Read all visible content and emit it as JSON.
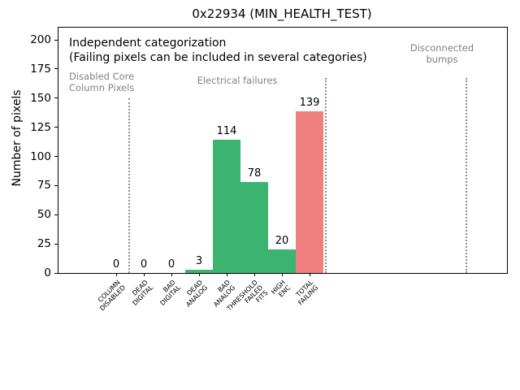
{
  "chart_data": {
    "type": "bar",
    "title": "0x22934 (MIN_HEALTH_TEST)",
    "xlabel": "",
    "ylabel": "Number of pixels",
    "ylim": [
      0,
      210
    ],
    "yticks": [
      0,
      25,
      50,
      75,
      100,
      125,
      150,
      175,
      200
    ],
    "grid": false,
    "legend": false,
    "categories": [
      "COLUMN\nDISABLED",
      "DEAD\nDIGITAL",
      "BAD\nDIGITAL",
      "DEAD\nANALOG",
      "BAD\nANALOG",
      "THRESHOLD\nFAILED\nFITS",
      "HIGH\nENC",
      "TOTAL\nFAILING"
    ],
    "values": [
      0,
      0,
      0,
      3,
      114,
      78,
      20,
      139
    ],
    "value_labels": [
      "0",
      "0",
      "0",
      "3",
      "114",
      "78",
      "20",
      "139"
    ],
    "bar_colors": [
      "#3cb371",
      "#3cb371",
      "#3cb371",
      "#3cb371",
      "#3cb371",
      "#3cb371",
      "#3cb371",
      "#f08080"
    ],
    "colors": {
      "pass_green": "#3cb371",
      "fail_red": "#f08080",
      "section_gray": "#808080",
      "separator_gray": "#8f8f8f",
      "text_black": "#000000"
    },
    "annotations": [
      {
        "text": "Independent categorization",
        "x": 13,
        "y": 11,
        "size": 14,
        "color": "#000000",
        "align": "left"
      },
      {
        "text": "(Failing pixels can be included in several categories)",
        "x": 13,
        "y": 29,
        "size": 14,
        "color": "#000000",
        "align": "left"
      },
      {
        "text": "Disabled Core\nColumn Pixels",
        "x": 13,
        "y": 54,
        "size": 11.5,
        "color": "#808080",
        "align": "left"
      },
      {
        "text": "Electrical failures",
        "x": 220,
        "y": 59,
        "size": 11.5,
        "color": "#808080",
        "align": "center"
      },
      {
        "text": "Disconnected\nbumps",
        "x": 472,
        "y": 19,
        "size": 11.5,
        "color": "#808080",
        "align": "center"
      }
    ],
    "separators": [
      {
        "x": 87,
        "top": 87
      },
      {
        "x": 329,
        "top": 62
      },
      {
        "x": 502,
        "top": 62
      }
    ]
  }
}
